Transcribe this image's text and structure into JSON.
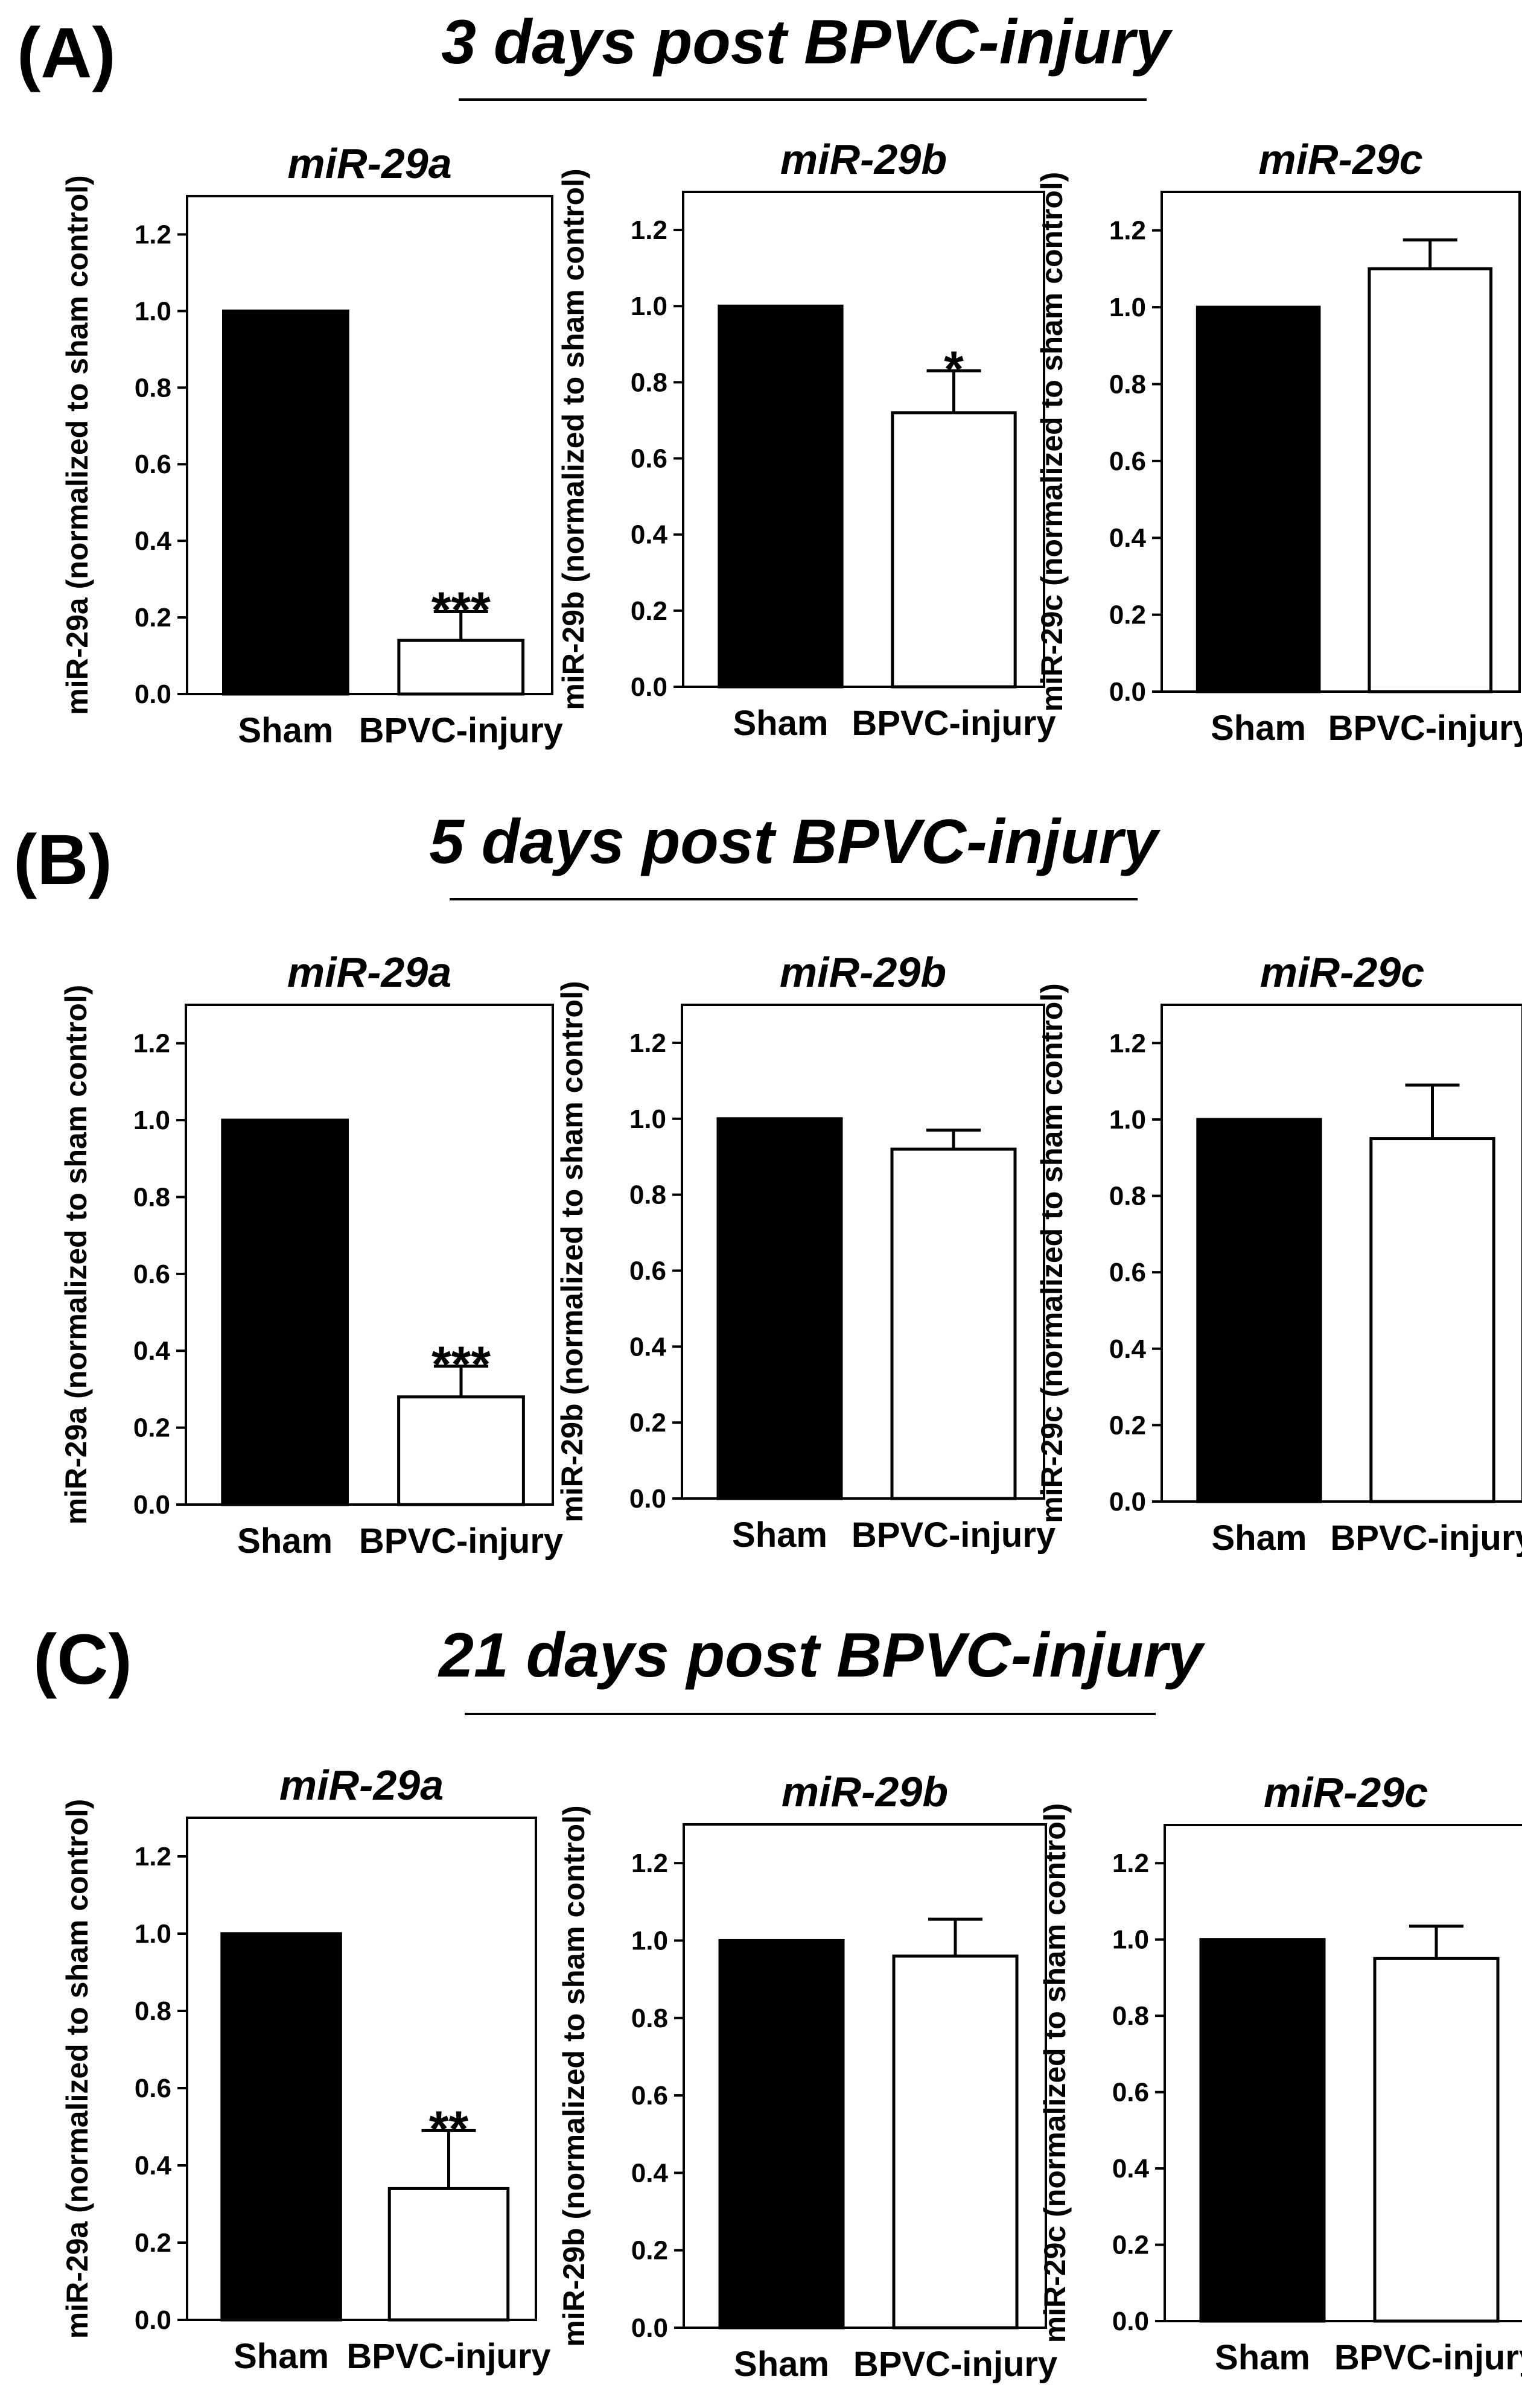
{
  "panels": [
    {
      "letter": "(A)",
      "heading": "3 days post BPVC-injury",
      "charts": [
        {
          "type": "bar",
          "title": "miR-29a",
          "ylabel": "miR-29a  (normalized to sham control)",
          "categories": [
            "Sham",
            "BPVC-injury"
          ],
          "values": [
            1.0,
            0.14
          ],
          "errors": [
            0,
            0.075
          ],
          "significance": [
            "",
            "***"
          ],
          "ylim": [
            0,
            1.3
          ],
          "yticks": [
            "0.0",
            "0.2",
            "0.4",
            "0.6",
            "0.8",
            "1.0",
            "1.2"
          ],
          "colors": [
            "#000000",
            "#ffffff"
          ]
        },
        {
          "type": "bar",
          "title": "miR-29b",
          "ylabel": "miR-29b  (normalized to sham control)",
          "categories": [
            "Sham",
            "BPVC-injury"
          ],
          "values": [
            1.0,
            0.72
          ],
          "errors": [
            0,
            0.11
          ],
          "significance": [
            "",
            "*"
          ],
          "ylim": [
            0,
            1.3
          ],
          "yticks": [
            "0.0",
            "0.2",
            "0.4",
            "0.6",
            "0.8",
            "1.0",
            "1.2"
          ],
          "colors": [
            "#000000",
            "#ffffff"
          ]
        },
        {
          "type": "bar",
          "title": "miR-29c",
          "ylabel": "miR-29c  (normalized to sham control)",
          "categories": [
            "Sham",
            "BPVC-injury"
          ],
          "values": [
            1.0,
            1.1
          ],
          "errors": [
            0,
            0.075
          ],
          "significance": [
            "",
            ""
          ],
          "ylim": [
            0,
            1.3
          ],
          "yticks": [
            "0.0",
            "0.2",
            "0.4",
            "0.6",
            "0.8",
            "1.0",
            "1.2"
          ],
          "colors": [
            "#000000",
            "#ffffff"
          ]
        }
      ]
    },
    {
      "letter": "(B)",
      "heading": "5 days post BPVC-injury",
      "charts": [
        {
          "type": "bar",
          "title": "miR-29a",
          "ylabel": "miR-29a  (normalized to sham control)",
          "categories": [
            "Sham",
            "BPVC-injury"
          ],
          "values": [
            1.0,
            0.28
          ],
          "errors": [
            0,
            0.08
          ],
          "significance": [
            "",
            "***"
          ],
          "ylim": [
            0,
            1.3
          ],
          "yticks": [
            "0.0",
            "0.2",
            "0.4",
            "0.6",
            "0.8",
            "1.0",
            "1.2"
          ],
          "colors": [
            "#000000",
            "#ffffff"
          ]
        },
        {
          "type": "bar",
          "title": "miR-29b",
          "ylabel": "miR-29b  (normalized to sham control)",
          "categories": [
            "Sham",
            "BPVC-injury"
          ],
          "values": [
            1.0,
            0.92
          ],
          "errors": [
            0,
            0.05
          ],
          "significance": [
            "",
            ""
          ],
          "ylim": [
            0,
            1.3
          ],
          "yticks": [
            "0.0",
            "0.2",
            "0.4",
            "0.6",
            "0.8",
            "1.0",
            "1.2"
          ],
          "colors": [
            "#000000",
            "#ffffff"
          ]
        },
        {
          "type": "bar",
          "title": "miR-29c",
          "ylabel": "miR-29c  (normalized to sham control)",
          "categories": [
            "Sham",
            "BPVC-injury"
          ],
          "values": [
            1.0,
            0.95
          ],
          "errors": [
            0,
            0.14
          ],
          "significance": [
            "",
            ""
          ],
          "ylim": [
            0,
            1.3
          ],
          "yticks": [
            "0.0",
            "0.2",
            "0.4",
            "0.6",
            "0.8",
            "1.0",
            "1.2"
          ],
          "colors": [
            "#000000",
            "#ffffff"
          ]
        }
      ]
    },
    {
      "letter": "(C)",
      "heading": "21 days post BPVC-injury",
      "charts": [
        {
          "type": "bar",
          "title": "miR-29a",
          "ylabel": "miR-29a  (normalized to sham control)",
          "categories": [
            "Sham",
            "BPVC-injury"
          ],
          "values": [
            1.0,
            0.34
          ],
          "errors": [
            0,
            0.15
          ],
          "significance": [
            "",
            "**"
          ],
          "ylim": [
            0,
            1.3
          ],
          "yticks": [
            "0.0",
            "0.2",
            "0.4",
            "0.6",
            "0.8",
            "1.0",
            "1.2"
          ],
          "colors": [
            "#000000",
            "#ffffff"
          ]
        },
        {
          "type": "bar",
          "title": "miR-29b",
          "ylabel": "miR-29b  (normalized to sham control)",
          "categories": [
            "Sham",
            "BPVC-injury"
          ],
          "values": [
            1.0,
            0.96
          ],
          "errors": [
            0,
            0.095
          ],
          "significance": [
            "",
            ""
          ],
          "ylim": [
            0,
            1.3
          ],
          "yticks": [
            "0.0",
            "0.2",
            "0.4",
            "0.6",
            "0.8",
            "1.0",
            "1.2"
          ],
          "colors": [
            "#000000",
            "#ffffff"
          ]
        },
        {
          "type": "bar",
          "title": "miR-29c",
          "ylabel": "miR-29c  (normalized to sham control)",
          "categories": [
            "Sham",
            "BPVC-injury"
          ],
          "values": [
            1.0,
            0.95
          ],
          "errors": [
            0,
            0.085
          ],
          "significance": [
            "",
            ""
          ],
          "ylim": [
            0,
            1.3
          ],
          "yticks": [
            "0.0",
            "0.2",
            "0.4",
            "0.6",
            "0.8",
            "1.0",
            "1.2"
          ],
          "colors": [
            "#000000",
            "#ffffff"
          ]
        }
      ]
    }
  ],
  "chart_data": [
    {
      "type": "bar",
      "panel": "(A) 3 days post BPVC-injury",
      "title": "miR-29a",
      "ylabel": "miR-29a  (normalized to sham control)",
      "categories": [
        "Sham",
        "BPVC-injury"
      ],
      "values": [
        1.0,
        0.14
      ],
      "errors": [
        0,
        0.075
      ],
      "significance": [
        "",
        "***"
      ],
      "ylim": [
        0,
        1.3
      ]
    },
    {
      "type": "bar",
      "panel": "(A) 3 days post BPVC-injury",
      "title": "miR-29b",
      "ylabel": "miR-29b  (normalized to sham control)",
      "categories": [
        "Sham",
        "BPVC-injury"
      ],
      "values": [
        1.0,
        0.72
      ],
      "errors": [
        0,
        0.11
      ],
      "significance": [
        "",
        "*"
      ],
      "ylim": [
        0,
        1.3
      ]
    },
    {
      "type": "bar",
      "panel": "(A) 3 days post BPVC-injury",
      "title": "miR-29c",
      "ylabel": "miR-29c  (normalized to sham control)",
      "categories": [
        "Sham",
        "BPVC-injury"
      ],
      "values": [
        1.0,
        1.1
      ],
      "errors": [
        0,
        0.075
      ],
      "significance": [
        "",
        ""
      ],
      "ylim": [
        0,
        1.3
      ]
    },
    {
      "type": "bar",
      "panel": "(B) 5 days post BPVC-injury",
      "title": "miR-29a",
      "ylabel": "miR-29a  (normalized to sham control)",
      "categories": [
        "Sham",
        "BPVC-injury"
      ],
      "values": [
        1.0,
        0.28
      ],
      "errors": [
        0,
        0.08
      ],
      "significance": [
        "",
        "***"
      ],
      "ylim": [
        0,
        1.3
      ]
    },
    {
      "type": "bar",
      "panel": "(B) 5 days post BPVC-injury",
      "title": "miR-29b",
      "ylabel": "miR-29b  (normalized to sham control)",
      "categories": [
        "Sham",
        "BPVC-injury"
      ],
      "values": [
        1.0,
        0.92
      ],
      "errors": [
        0,
        0.05
      ],
      "significance": [
        "",
        ""
      ],
      "ylim": [
        0,
        1.3
      ]
    },
    {
      "type": "bar",
      "panel": "(B) 5 days post BPVC-injury",
      "title": "miR-29c",
      "ylabel": "miR-29c  (normalized to sham control)",
      "categories": [
        "Sham",
        "BPVC-injury"
      ],
      "values": [
        1.0,
        0.95
      ],
      "errors": [
        0,
        0.14
      ],
      "significance": [
        "",
        ""
      ],
      "ylim": [
        0,
        1.3
      ]
    },
    {
      "type": "bar",
      "panel": "(C) 21 days post BPVC-injury",
      "title": "miR-29a",
      "ylabel": "miR-29a  (normalized to sham control)",
      "categories": [
        "Sham",
        "BPVC-injury"
      ],
      "values": [
        1.0,
        0.34
      ],
      "errors": [
        0,
        0.15
      ],
      "significance": [
        "",
        "**"
      ],
      "ylim": [
        0,
        1.3
      ]
    },
    {
      "type": "bar",
      "panel": "(C) 21 days post BPVC-injury",
      "title": "miR-29b",
      "ylabel": "miR-29b  (normalized to sham control)",
      "categories": [
        "Sham",
        "BPVC-injury"
      ],
      "values": [
        1.0,
        0.96
      ],
      "errors": [
        0,
        0.095
      ],
      "significance": [
        "",
        ""
      ],
      "ylim": [
        0,
        1.3
      ]
    },
    {
      "type": "bar",
      "panel": "(C) 21 days post BPVC-injury",
      "title": "miR-29c",
      "ylabel": "miR-29c  (normalized to sham control)",
      "categories": [
        "Sham",
        "BPVC-injury"
      ],
      "values": [
        1.0,
        0.95
      ],
      "errors": [
        0,
        0.085
      ],
      "significance": [
        "",
        ""
      ],
      "ylim": [
        0,
        1.3
      ]
    }
  ]
}
